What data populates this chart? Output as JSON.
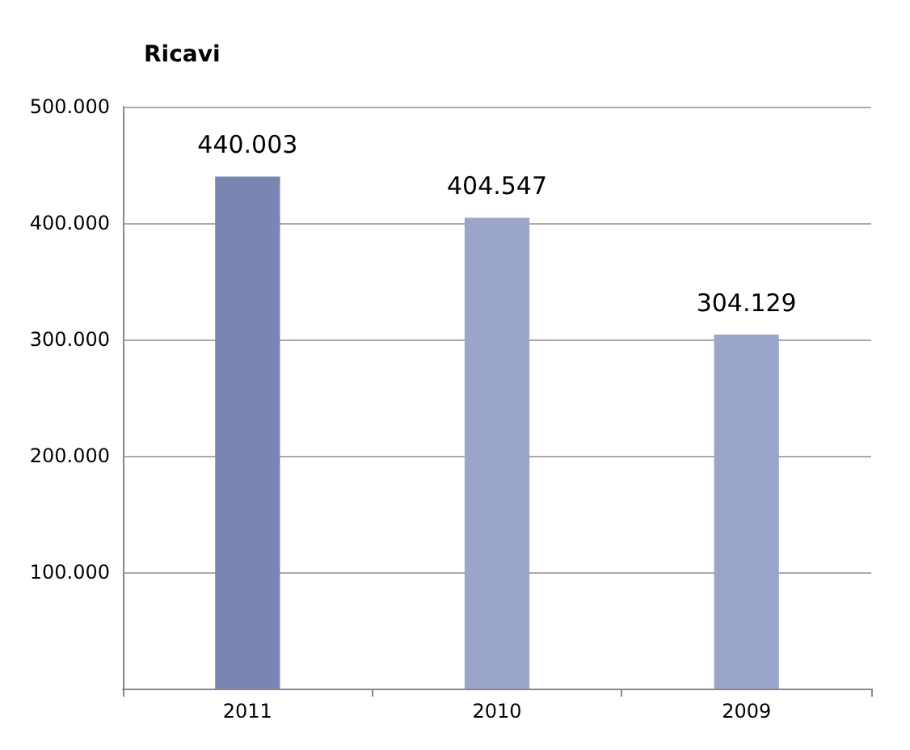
{
  "chart_data": {
    "type": "bar",
    "title": "Ricavi",
    "categories": [
      "2011",
      "2010",
      "2009"
    ],
    "values": [
      440003,
      404547,
      304129
    ],
    "colors": [
      "#7a86b2",
      "#9ba4c9",
      "#9ba4c9"
    ],
    "value_labels": [
      "440.003",
      "404.547",
      "304.129"
    ],
    "ylim": [
      0,
      500000
    ],
    "yticks": [
      {
        "value": 0,
        "label": null
      },
      {
        "value": 100000,
        "label": "100.000"
      },
      {
        "value": 200000,
        "label": "200.000"
      },
      {
        "value": 300000,
        "label": "300.000"
      },
      {
        "value": 400000,
        "label": "400.000"
      },
      {
        "value": 500000,
        "label": "500.000"
      }
    ],
    "grid": "y"
  }
}
